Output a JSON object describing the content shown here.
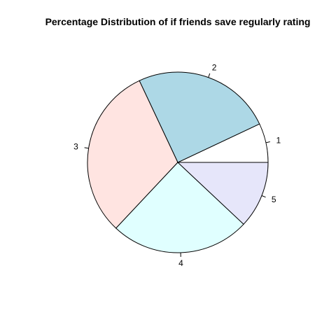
{
  "chart_data": {
    "type": "pie",
    "title": "Percentage Distribution of if friends save regularly rating",
    "categories": [
      "1",
      "2",
      "3",
      "4",
      "5"
    ],
    "values": [
      7,
      25,
      31,
      25,
      12
    ],
    "colors": [
      "#FFFFFF",
      "#ADD8E6",
      "#FFE4E1",
      "#E0FFFF",
      "#E6E6FA"
    ],
    "start_angle_deg": 0,
    "direction": "counterclockwise",
    "legend": "none"
  }
}
